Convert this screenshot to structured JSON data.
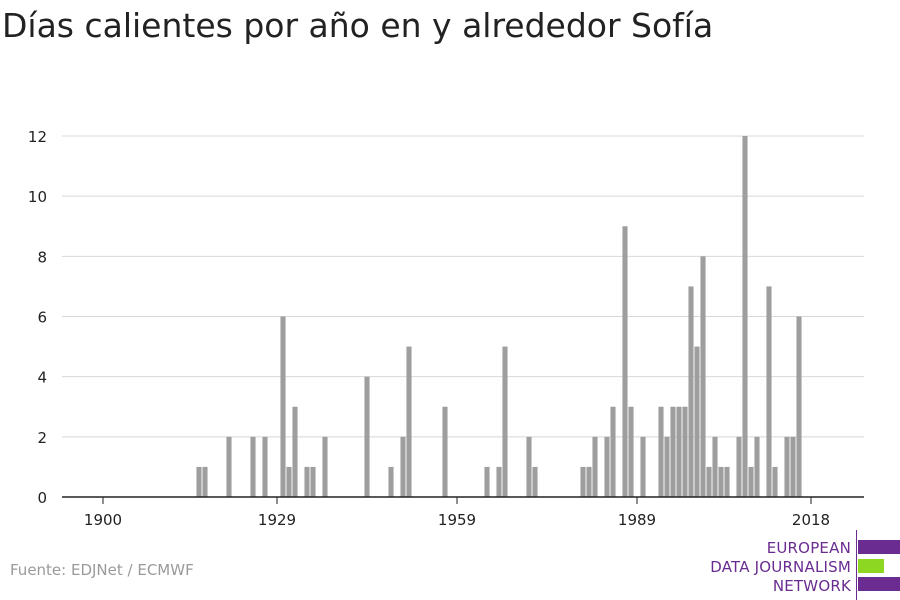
{
  "title": "Días calientes por año en y alrededor Sofía",
  "source": "Fuente: EDJNet / ECMWF",
  "logo": {
    "line1": "EUROPEAN",
    "line2": "DATA JOURNALISM",
    "line3": "NETWORK",
    "colors": {
      "purple": "#6a2c91",
      "green": "#8dd622"
    }
  },
  "colors": {
    "bar": "#9e9e9e",
    "grid": "#d8d8d8",
    "axis": "#222222",
    "text": "#222222"
  },
  "chart_data": {
    "type": "bar",
    "title": "Días calientes por año en y alrededor Sofía",
    "xlabel": "",
    "ylabel": "",
    "xlim": [
      1894,
      2021
    ],
    "ylim": [
      0,
      12
    ],
    "yticks": [
      0,
      2,
      4,
      6,
      8,
      10,
      12
    ],
    "xticks": [
      1900,
      1929,
      1959,
      1989,
      2018
    ],
    "grid": true,
    "x": [
      1916,
      1917,
      1921,
      1925,
      1927,
      1930,
      1931,
      1932,
      1934,
      1935,
      1937,
      1944,
      1948,
      1950,
      1951,
      1957,
      1964,
      1966,
      1967,
      1971,
      1972,
      1980,
      1981,
      1982,
      1984,
      1985,
      1987,
      1988,
      1990,
      1993,
      1994,
      1995,
      1996,
      1997,
      1998,
      1999,
      2000,
      2001,
      2002,
      2003,
      2004,
      2006,
      2007,
      2008,
      2009,
      2011,
      2012,
      2014,
      2015,
      2016
    ],
    "values": [
      1,
      1,
      2,
      2,
      2,
      6,
      1,
      3,
      1,
      1,
      2,
      4,
      1,
      2,
      5,
      3,
      1,
      1,
      5,
      2,
      1,
      1,
      1,
      2,
      2,
      3,
      9,
      3,
      2,
      3,
      2,
      3,
      3,
      3,
      7,
      5,
      8,
      1,
      2,
      1,
      1,
      2,
      12,
      1,
      2,
      7,
      1,
      2,
      2,
      6
    ]
  }
}
